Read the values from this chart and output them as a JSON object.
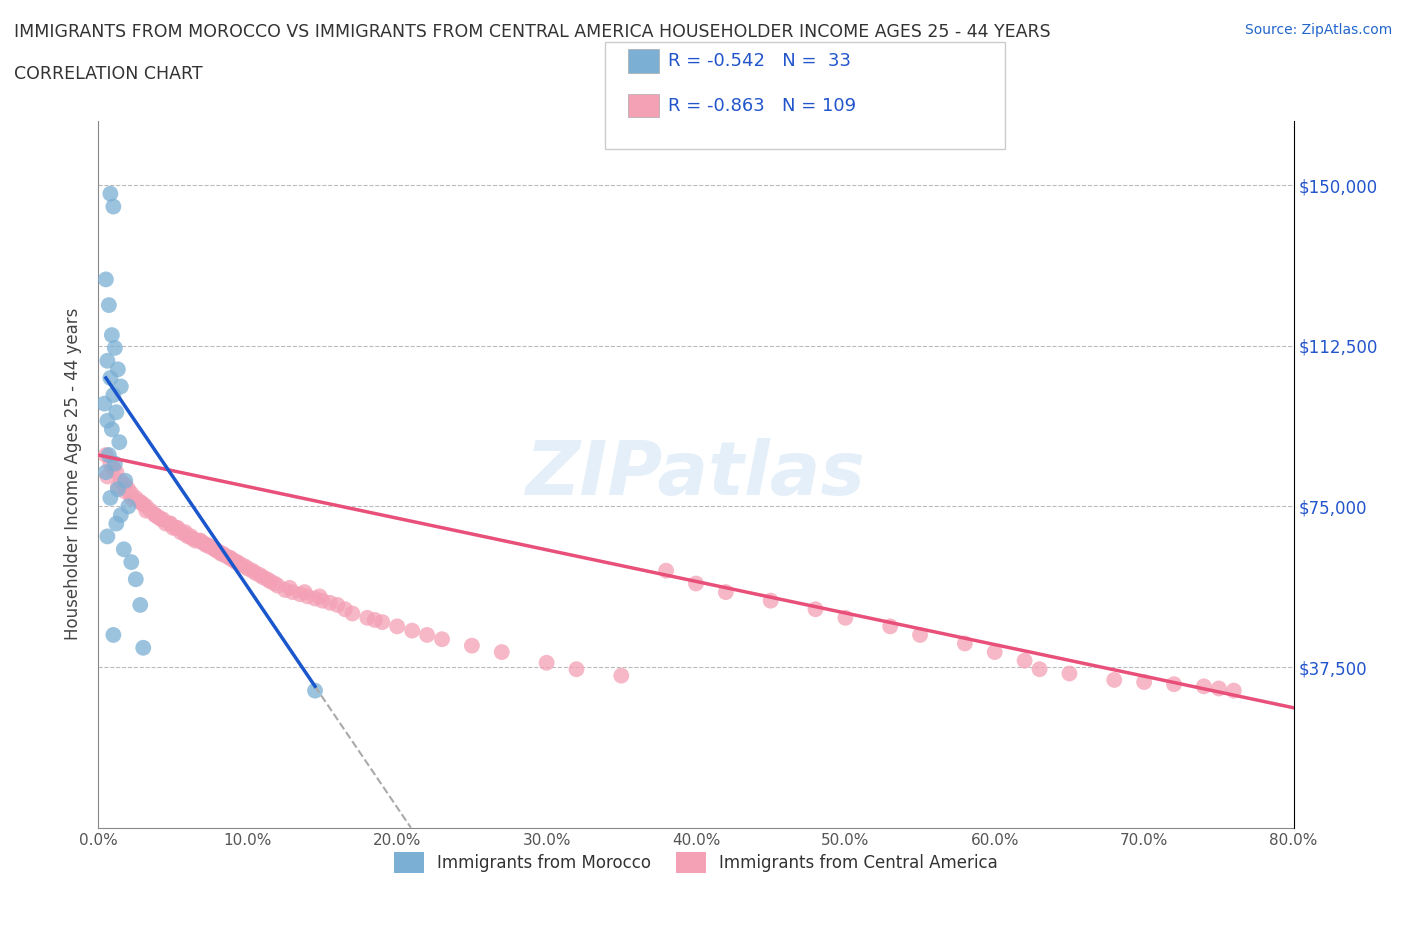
{
  "title_line1": "IMMIGRANTS FROM MOROCCO VS IMMIGRANTS FROM CENTRAL AMERICA HOUSEHOLDER INCOME AGES 25 - 44 YEARS",
  "title_line2": "CORRELATION CHART",
  "source_text": "Source: ZipAtlas.com",
  "ylabel": "Householder Income Ages 25 - 44 years",
  "xlabel_ticks": [
    "0.0%",
    "10.0%",
    "20.0%",
    "30.0%",
    "40.0%",
    "50.0%",
    "60.0%",
    "70.0%",
    "80.0%"
  ],
  "ytick_values": [
    0,
    37500,
    75000,
    112500,
    150000
  ],
  "ytick_labels": [
    "",
    "$37,500",
    "$75,000",
    "$112,500",
    "$150,000"
  ],
  "xmin": 0.0,
  "xmax": 80.0,
  "ymin": 0,
  "ymax": 165000,
  "morocco_color": "#7BAFD4",
  "central_america_color": "#F4A0B5",
  "morocco_line_color": "#1A56CC",
  "central_line_color": "#E8507A",
  "dash_color": "#AAAAAA",
  "morocco_R": -0.542,
  "morocco_N": 33,
  "central_america_R": -0.863,
  "central_america_N": 109,
  "legend_label_morocco": "Immigrants from Morocco",
  "legend_label_central": "Immigrants from Central America",
  "watermark_text": "ZIPatlas",
  "morocco_scatter_x": [
    0.8,
    1.0,
    0.5,
    0.7,
    0.9,
    1.1,
    0.6,
    1.3,
    0.8,
    1.5,
    1.0,
    0.4,
    1.2,
    0.6,
    0.9,
    1.4,
    0.7,
    1.1,
    0.5,
    1.8,
    1.3,
    0.8,
    2.0,
    1.5,
    1.2,
    0.6,
    1.7,
    2.2,
    2.5,
    2.8,
    1.0,
    3.0,
    14.5
  ],
  "morocco_scatter_y": [
    148000,
    145000,
    128000,
    122000,
    115000,
    112000,
    109000,
    107000,
    105000,
    103000,
    101000,
    99000,
    97000,
    95000,
    93000,
    90000,
    87000,
    85000,
    83000,
    81000,
    79000,
    77000,
    75000,
    73000,
    71000,
    68000,
    65000,
    62000,
    58000,
    52000,
    45000,
    42000,
    32000
  ],
  "central_scatter_x": [
    0.5,
    0.8,
    1.0,
    1.2,
    0.6,
    1.5,
    1.8,
    2.0,
    1.3,
    2.2,
    2.5,
    1.8,
    2.8,
    3.0,
    2.2,
    3.2,
    3.5,
    2.8,
    3.8,
    4.0,
    3.2,
    4.2,
    4.5,
    3.8,
    4.8,
    5.0,
    4.3,
    5.3,
    5.5,
    4.8,
    5.8,
    6.0,
    5.2,
    6.3,
    6.5,
    5.8,
    6.8,
    7.0,
    6.2,
    7.3,
    7.5,
    6.8,
    7.8,
    8.0,
    7.2,
    8.3,
    8.5,
    7.8,
    8.8,
    9.0,
    8.2,
    9.3,
    9.5,
    8.8,
    9.8,
    10.0,
    9.2,
    10.3,
    10.5,
    10.8,
    11.0,
    11.3,
    11.5,
    11.8,
    12.0,
    12.5,
    13.0,
    12.8,
    13.5,
    14.0,
    13.8,
    14.5,
    15.0,
    14.8,
    15.5,
    16.0,
    16.5,
    17.0,
    18.0,
    18.5,
    19.0,
    20.0,
    21.0,
    22.0,
    23.0,
    25.0,
    27.0,
    30.0,
    32.0,
    35.0,
    38.0,
    40.0,
    42.0,
    45.0,
    48.0,
    50.0,
    53.0,
    55.0,
    58.0,
    60.0,
    62.0,
    63.0,
    65.0,
    68.0,
    70.0,
    72.0,
    74.0,
    75.0,
    76.0
  ],
  "central_scatter_y": [
    87000,
    85000,
    84000,
    83000,
    82000,
    81000,
    80000,
    79000,
    79500,
    78000,
    77000,
    78500,
    76000,
    75500,
    77000,
    75000,
    74000,
    76000,
    73000,
    72500,
    74000,
    72000,
    71000,
    73000,
    71000,
    70000,
    72000,
    70000,
    69000,
    71000,
    68500,
    68000,
    70000,
    67500,
    67000,
    69000,
    67000,
    66500,
    68000,
    66000,
    65500,
    67000,
    65000,
    64500,
    66000,
    64000,
    63500,
    65000,
    63000,
    62500,
    64000,
    62000,
    61500,
    63000,
    61000,
    60500,
    62000,
    60000,
    59500,
    59000,
    58500,
    58000,
    57500,
    57000,
    56500,
    55500,
    55000,
    56000,
    54500,
    54000,
    55000,
    53500,
    53000,
    54000,
    52500,
    52000,
    51000,
    50000,
    49000,
    48500,
    48000,
    47000,
    46000,
    45000,
    44000,
    42500,
    41000,
    38500,
    37000,
    35500,
    60000,
    57000,
    55000,
    53000,
    51000,
    49000,
    47000,
    45000,
    43000,
    41000,
    39000,
    37000,
    36000,
    34500,
    34000,
    33500,
    33000,
    32500,
    32000
  ]
}
